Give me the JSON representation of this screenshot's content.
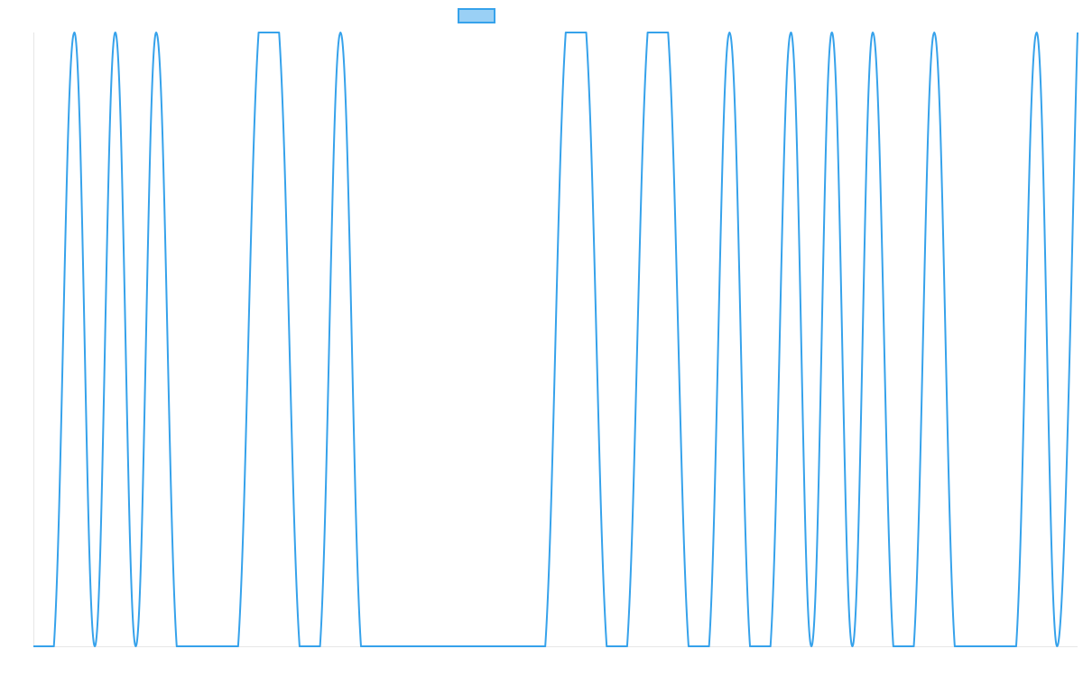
{
  "chart_data": {
    "type": "line",
    "title": "",
    "xlabel": "",
    "ylabel": "",
    "grid": false,
    "legend_placement": "top-center",
    "x": [
      0,
      1,
      2,
      3,
      4,
      5,
      6,
      7,
      8,
      9,
      10,
      11,
      12,
      13,
      14,
      15,
      16,
      17,
      18,
      19,
      20,
      21,
      22,
      23,
      24,
      25,
      26,
      27,
      28,
      29,
      30,
      31,
      32,
      33,
      34,
      35,
      36,
      37,
      38,
      39,
      40,
      41,
      42,
      43,
      44,
      45,
      46,
      47,
      48,
      49,
      50,
      51
    ],
    "series": [
      {
        "name": "",
        "color": "#36A2EB",
        "fill_color": "#9AD0F5",
        "values": [
          0,
          0,
          1,
          0,
          1,
          0,
          1,
          0,
          0,
          0,
          0,
          1,
          1,
          0,
          0,
          1,
          0,
          0,
          0,
          0,
          0,
          0,
          0,
          0,
          0,
          0,
          1,
          1,
          0,
          0,
          1,
          1,
          0,
          0,
          1,
          0,
          0,
          1,
          0,
          1,
          0,
          1,
          0,
          0,
          1,
          0,
          0,
          0,
          0,
          1,
          0,
          1
        ]
      }
    ],
    "ylim": [
      0,
      1
    ]
  }
}
